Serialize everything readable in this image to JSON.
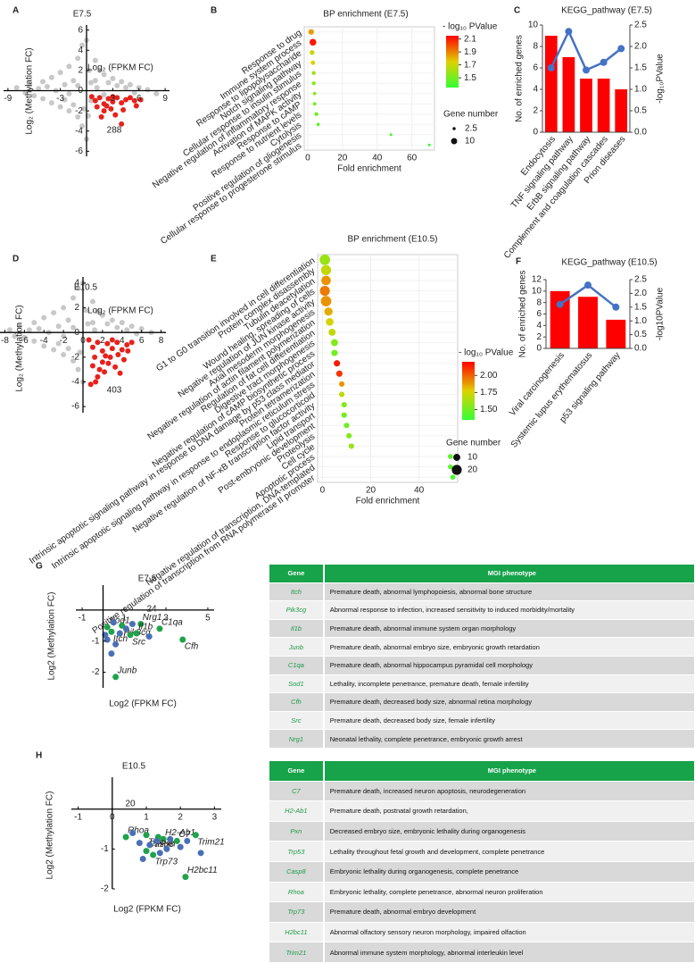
{
  "chart_data": [
    {
      "type": "scatter",
      "panel": "A",
      "title": "E7.5",
      "xlabel": "Log₂ (FPKM FC)",
      "ylabel": "Log₂ (Methylation FC)",
      "annotation": "288",
      "annotation_color": "#e8211d",
      "xlim": [
        -9.5,
        9.5
      ],
      "ylim": [
        -6.5,
        6.5
      ],
      "xticks": [
        -9,
        -3,
        3,
        6,
        9
      ],
      "yticks": [
        6,
        4,
        2,
        0,
        -2,
        -4,
        -6
      ],
      "series": [
        {
          "color": "#c8c8c8",
          "x": [
            -8,
            -7,
            -6.5,
            -6,
            -5.5,
            -5,
            -5,
            -4.5,
            -4,
            -4,
            -3.5,
            -3,
            -3,
            -2.5,
            -2.5,
            -2,
            -2,
            -1.5,
            -1.5,
            -1,
            -1,
            -0.5,
            -0.5,
            0,
            0,
            0.3,
            0.5,
            1,
            1,
            1.5,
            2,
            2.5,
            3,
            3.5,
            4,
            4.5,
            5,
            5.5,
            6,
            7,
            8,
            -1,
            -2,
            1.2,
            2,
            0.5,
            -0.3,
            0.2
          ],
          "y": [
            0.3,
            -0.2,
            0.6,
            -0.5,
            0.2,
            0.9,
            -0.8,
            0.4,
            -1.2,
            1.3,
            0,
            -1.6,
            1.8,
            0.6,
            -0.9,
            2.4,
            -2,
            1,
            -1.4,
            3.2,
            -2.6,
            4.5,
            -3.5,
            5,
            -4.8,
            2,
            -1,
            3,
            1,
            2,
            1.6,
            0.8,
            1.2,
            0.5,
            0.9,
            0.3,
            0.6,
            -0.2,
            0.3,
            0.1,
            -0.3,
            0.5,
            -0.3,
            0.3,
            -0.4,
            0.8,
            -1.8,
            -2.5
          ]
        },
        {
          "color": "#e8211d",
          "x": [
            0.6,
            1,
            1.5,
            2,
            2.5,
            3,
            3.5,
            4,
            4.5,
            5,
            5.5,
            1.2,
            2,
            2.8,
            3.3,
            4.2,
            4,
            5.7,
            6.2,
            1.7,
            3,
            2.3
          ],
          "y": [
            -0.6,
            -1,
            -0.7,
            -1.3,
            -0.8,
            -1.1,
            -0.7,
            -1.2,
            -0.9,
            -0.7,
            -1,
            -1.6,
            -2,
            -1.8,
            -2.4,
            -1.9,
            -3.3,
            -1.5,
            -0.9,
            -2.6,
            -0.6,
            -1.5
          ]
        }
      ]
    },
    {
      "type": "bubble",
      "panel": "B",
      "title": "BP enrichment (E7.5)",
      "xlabel": "Fold enrichment",
      "categories": [
        "Response to drug",
        "Immune system process",
        "Response to lipopolysaccharide",
        "Notch signaling pathway",
        "Cellular response to insulin stimulus",
        "Negative regulation of inflammatory response",
        "Activation of MAPK activity",
        "Response to cAMP",
        "Response to nutrient levels",
        "Cytolysis",
        "Positive regulation of gliogenesis",
        "Cellular response to progesterone stimulus"
      ],
      "values": [
        2,
        3,
        2.5,
        3,
        3.5,
        3.5,
        4,
        4,
        5,
        6,
        48,
        70
      ],
      "color_values": [
        1.85,
        2.1,
        1.7,
        1.75,
        1.6,
        1.55,
        1.55,
        1.5,
        1.5,
        1.45,
        1.4,
        1.35
      ],
      "size_values": [
        8,
        12,
        6,
        5,
        4,
        4,
        3,
        3,
        4,
        3,
        2,
        2
      ],
      "xlim": [
        -2,
        73
      ],
      "xticks": [
        0,
        20,
        40,
        60
      ],
      "colorbar": {
        "title": "- log₁₀ PValue",
        "lim": [
          1.35,
          2.15
        ],
        "ticks": [
          2.1,
          1.9,
          1.7,
          1.5
        ]
      },
      "size_legend": {
        "title": "Gene number",
        "values": [
          2.5,
          10
        ]
      }
    },
    {
      "type": "bar",
      "panel": "C",
      "title": "KEGG_pathway (E7.5)",
      "ylabel": "No. of enriched genes",
      "y2label": "-log₁₀PValue",
      "categories": [
        "Endocytosis",
        "TNF signaling pathway",
        "ErbB signaling pathway",
        "Complement and coagulation cascades",
        "Prion diseases"
      ],
      "series": [
        {
          "color": "#ff0000",
          "values": [
            9,
            7,
            5,
            5,
            4
          ]
        },
        {
          "color": "#4472c4",
          "axis": "y2",
          "values": [
            1.5,
            2.35,
            1.45,
            1.63,
            1.95
          ]
        }
      ],
      "ylim": [
        0,
        10
      ],
      "yticks": [
        0,
        2,
        4,
        6,
        8,
        10
      ],
      "y2lim": [
        0,
        2.5
      ],
      "y2ticks": [
        {
          "value": 0,
          "label": "0.0"
        },
        0.5,
        {
          "value": 1,
          "label": "1.0"
        },
        1.5,
        {
          "value": 2,
          "label": "2.0"
        },
        2.5
      ]
    },
    {
      "type": "scatter",
      "panel": "D",
      "title": "E10.5",
      "xlabel": "Log₂ (FPKM FC)",
      "ylabel": "Log₂ (Methylation FC)",
      "annotation": "403",
      "annotation_color": "#e8211d",
      "xlim": [
        -8.5,
        8.5
      ],
      "ylim": [
        -6.5,
        4.5
      ],
      "xticks": [
        -8,
        -6,
        -4,
        -2,
        0,
        2,
        4,
        6,
        8
      ],
      "yticks": [
        4,
        2,
        0,
        -2,
        -4,
        -6
      ],
      "series": [
        {
          "color": "#c8c8c8",
          "x": [
            -7.5,
            -7,
            -6.5,
            -6,
            -5.5,
            -5,
            -5,
            -4.5,
            -4,
            -4,
            -3.5,
            -3,
            -3,
            -2.5,
            -2.5,
            -2,
            -2,
            -1.5,
            -1.5,
            -1,
            -1,
            -0.5,
            -0.5,
            0,
            0,
            0.3,
            1,
            1,
            1.5,
            2,
            2.5,
            3,
            3.5,
            4,
            4.5,
            5,
            5.5,
            6,
            7,
            -1,
            -2,
            1.2,
            0.5,
            -0.3
          ],
          "y": [
            0.2,
            -0.3,
            0.5,
            -0.4,
            0.2,
            0.8,
            -0.7,
            0.3,
            -1.1,
            1.2,
            0,
            -1.4,
            1.6,
            0.5,
            -0.9,
            2,
            -1.8,
            1,
            -1.3,
            2.8,
            -2.3,
            3.6,
            -3,
            4,
            -4,
            1.8,
            2.5,
            0.8,
            1.7,
            1.4,
            0.7,
            1,
            0.4,
            0.8,
            0.2,
            0.5,
            -0.1,
            0.3,
            0,
            0.4,
            -0.3,
            0.2,
            0.7,
            -1.6
          ]
        },
        {
          "color": "#e8211d",
          "x": [
            0.6,
            1,
            1.5,
            2,
            2.5,
            3,
            3.5,
            4,
            4.5,
            5,
            1.2,
            2,
            2.8,
            3.3,
            4.2,
            3.8,
            1.7,
            3,
            2.3,
            1,
            1.5,
            2.6,
            3.6,
            4.6,
            2.2,
            0.8,
            1.3
          ],
          "y": [
            -0.6,
            -1.2,
            -0.8,
            -1.5,
            -0.9,
            -1.3,
            -0.8,
            -1.4,
            -1,
            -0.8,
            -2,
            -2.4,
            -2,
            -2.8,
            -2.2,
            -3.3,
            -3,
            -0.6,
            -1.9,
            -2.7,
            -3.6,
            -2.5,
            -1.8,
            -1.5,
            -3.2,
            -4.2,
            -4
          ]
        }
      ]
    },
    {
      "type": "bubble",
      "panel": "E",
      "title": "BP enrichment (E10.5)",
      "xlabel": "Fold enrichment",
      "categories": [
        "G1 to G0 transition involved in cell differentiation",
        "Protein complex disassembly",
        "Tubulin deacetylation",
        "Wound healing, spreading of cells",
        "Negative regulation of JUN kinase activity",
        "Axial mesoderm morphogenesis",
        "Negative regulation of actin filament polymerization",
        "Regulation of fat cell differentiation",
        "Digestive tract morphogenesis",
        "Negative regulation of cAMP biosynthetic process",
        "Intrinsic apoptotic signaling pathway in response to DNA damage by p53 class mediator",
        "Protein tetramerization",
        "Intrinsic apoptotic signaling pathway in response to endoplasmic reticulum stress",
        "Response to glucocorticoid",
        "Negative regulation of NF-κB transcription factor activity",
        "Lipid transport",
        "Post-embryonic development",
        "Proteolysis",
        "Cell cycle",
        "Apoptotic process",
        "Negative regulation of transcription, DNA-templated",
        "Positive regulation of transcription from RNA polymerase II promoter"
      ],
      "values": [
        1,
        1.5,
        1.5,
        1,
        1.5,
        2.5,
        3,
        4,
        5,
        5,
        6,
        7,
        8,
        8,
        9,
        9,
        10,
        11,
        12,
        53,
        53,
        54
      ],
      "color_values": [
        1.6,
        1.7,
        1.9,
        1.95,
        1.9,
        1.85,
        1.75,
        1.7,
        1.55,
        1.5,
        2.15,
        2.1,
        1.9,
        1.7,
        1.55,
        1.5,
        1.5,
        1.55,
        1.6,
        1.45,
        1.45,
        1.4
      ],
      "size_values": [
        22,
        20,
        18,
        20,
        22,
        14,
        12,
        10,
        10,
        8,
        8,
        8,
        6,
        6,
        6,
        6,
        6,
        6,
        6,
        5,
        5,
        5
      ],
      "xlim": [
        -2,
        56
      ],
      "xticks": [
        0,
        20,
        40
      ],
      "colorbar": {
        "title": "- log₁₀ PValue",
        "lim": [
          1.35,
          2.2
        ],
        "ticks": [
          {
            "value": 2,
            "label": "2.00"
          },
          1.75,
          {
            "value": 1.5,
            "label": "1.50"
          }
        ]
      },
      "size_legend": {
        "title": "Gene number",
        "values": [
          10,
          20
        ]
      }
    },
    {
      "type": "bar",
      "panel": "F",
      "title": "KEGG_pathway (E10.5)",
      "ylabel": "No. of enriched genes",
      "y2label": "-log10PValue",
      "categories": [
        "Viral carcinogenesis",
        "Systemic lupus erythematosus",
        "p53 signaling pathway"
      ],
      "series": [
        {
          "color": "#ff0000",
          "values": [
            10,
            9,
            5
          ]
        },
        {
          "color": "#4472c4",
          "axis": "y2",
          "values": [
            1.6,
            2.3,
            1.5
          ]
        }
      ],
      "ylim": [
        0,
        12
      ],
      "yticks": [
        0,
        2,
        4,
        6,
        8,
        10,
        12
      ],
      "y2lim": [
        0,
        2.5
      ],
      "y2ticks": [
        {
          "value": 0,
          "label": "0.0"
        },
        0.5,
        {
          "value": 1,
          "label": "1.0"
        },
        1.5,
        {
          "value": 2,
          "label": "2.0"
        },
        2.5
      ]
    },
    {
      "type": "scatter",
      "panel": "G",
      "title": "E7.5",
      "xlabel": "Log2 (FPKM FC)",
      "ylabel": "Log2 (Methylation FC)",
      "annotation": "24",
      "annotation_color": "#4a78c2",
      "xlim": [
        -1.3,
        5.3
      ],
      "ylim": [
        -2.5,
        0.8
      ],
      "xticks": [
        -1,
        1,
        3,
        5
      ],
      "yticks": [
        -1,
        -2
      ],
      "series": [
        {
          "color": "#1fa24a",
          "x": [
            0.2,
            0.9,
            1.8,
            0.4,
            1.6,
            1.3,
            2.7,
            3.8,
            0.6
          ],
          "y": [
            -0.55,
            -0.5,
            -0.45,
            -0.7,
            -0.75,
            -0.8,
            -0.6,
            -0.95,
            -2.15
          ],
          "point_labels": [
            "Sod1",
            "Pik3cg",
            "Nrg1",
            "Itch",
            "Il1b",
            "Src",
            "C1qa",
            "Cfh",
            "Junb"
          ]
        },
        {
          "color": "#4a6fb5",
          "x": [
            0.1,
            0.5,
            0.8,
            1.1,
            1.4,
            2.2,
            0.4,
            0.6,
            0.2
          ],
          "y": [
            -0.8,
            -0.4,
            -0.75,
            -0.6,
            -0.45,
            -0.85,
            -1.4,
            -1.1,
            -0.95
          ]
        }
      ]
    },
    {
      "type": "scatter",
      "panel": "H",
      "title": "E10.5",
      "xlabel": "Log2 (FPKM FC)",
      "ylabel": "Log2 (Methylation FC)",
      "annotation": "20",
      "annotation_color": "#4a78c2",
      "xlim": [
        -1.2,
        3.2
      ],
      "ylim": [
        -2,
        0.8
      ],
      "xticks": [
        -1,
        0,
        1,
        2,
        3
      ],
      "yticks": [
        -1,
        -2
      ],
      "series": [
        {
          "color": "#1fa24a",
          "x": [
            0.4,
            1.0,
            1.5,
            1.35,
            1.0,
            1.2,
            1.9,
            2.45,
            2.15
          ],
          "y": [
            -0.7,
            -0.65,
            -0.75,
            -0.7,
            -1.05,
            -1.15,
            -0.8,
            -0.65,
            -1.7
          ],
          "point_labels": [
            "Rhoa",
            "Trp53",
            "H2-Ab1",
            "Pxn",
            "Casp8",
            "Trp73",
            "C7",
            "Trim21",
            "H2bc11"
          ]
        },
        {
          "color": "#4a6fb5",
          "x": [
            0.6,
            0.8,
            1.1,
            1.3,
            1.6,
            1.7,
            2.0,
            2.6,
            0.9,
            1.4,
            2.2
          ],
          "y": [
            -0.6,
            -0.85,
            -0.9,
            -0.8,
            -1,
            -0.75,
            -0.95,
            -1.1,
            -1.25,
            -1.1,
            -0.8
          ]
        }
      ]
    }
  ],
  "tables": [
    {
      "columns": [
        "Gene",
        "MGI phenotype"
      ],
      "rows": [
        [
          "Itch",
          "Premature death, abnormal lymphopoiesis, abnormal bone structure"
        ],
        [
          "Pik3cg",
          "Abnormal response to infection, increased sensitivity to induced morbidity/mortality"
        ],
        [
          "Il1b",
          "Premature death, abnormal immune system organ morphology"
        ],
        [
          "Junb",
          "Premature death, abnormal embryo size, embryonic growth retardation"
        ],
        [
          "C1qa",
          "Premature death, abnormal hippocampus pyramidal cell morphology"
        ],
        [
          "Sod1",
          "Lethality, incomplete penetrance, premature death, female infertility"
        ],
        [
          "Cfh",
          "Premature death, decreased body size, abnormal retina morphology"
        ],
        [
          "Src",
          "Premature death, decreased body size, female infertility"
        ],
        [
          "Nrg1",
          "Neonatal lethality, complete penetrance, embryonic growth arrest"
        ]
      ]
    },
    {
      "columns": [
        "Gene",
        "MGI phenotype"
      ],
      "rows": [
        [
          "C7",
          "Premature death, increased neuron apoptosis, neurodegeneration"
        ],
        [
          "H2-Ab1",
          "Premature death, postnatal growth retardation,"
        ],
        [
          "Pxn",
          "Decreased embryo size, embryonic lethality during organogenesis"
        ],
        [
          "Trp53",
          "Lethality throughout fetal growth and development, complete penetrance"
        ],
        [
          "Casp8",
          "Embryonic lethality during organogenesis, complete penetrance"
        ],
        [
          "Rhoa",
          "Embryonic lethality, complete penetrance, abnormal neuron proliferation"
        ],
        [
          "Trp73",
          "Premature death, abnormal embryo development"
        ],
        [
          "H2bc11",
          "Abnormal olfactory sensory neuron morphology, impaired olfaction"
        ],
        [
          "Trim21",
          "Abnormal immune system morphology, abnormal interleukin level"
        ]
      ]
    }
  ]
}
